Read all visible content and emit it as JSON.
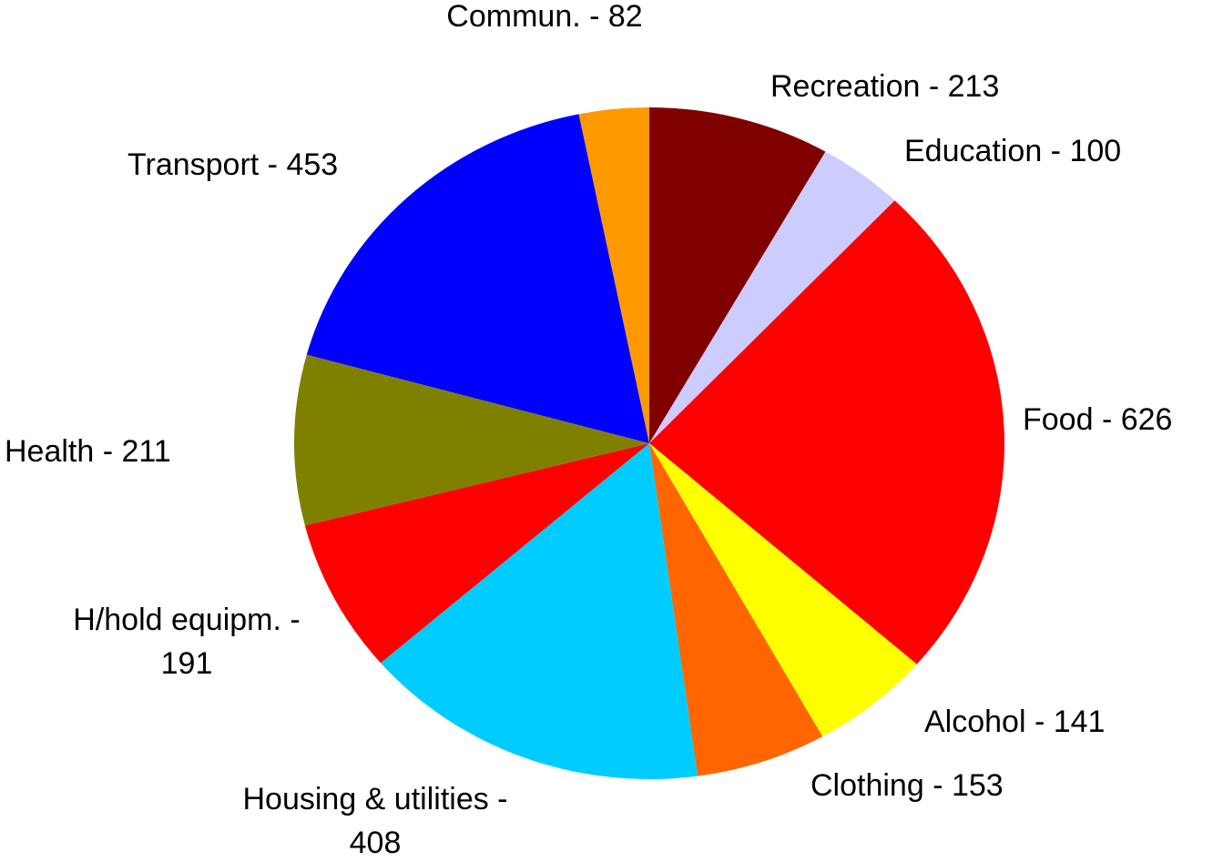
{
  "chart_data": {
    "type": "pie",
    "categories": [
      "Recreation - 213",
      "Education - 100",
      "Food - 626",
      "Alcohol - 141",
      "Clothing - 153",
      "Housing & utilities - 408",
      "H/hold equipm. - 191",
      "Health - 211",
      "Transport - 453",
      "Commun. - 82"
    ],
    "values": [
      213,
      100,
      626,
      141,
      153,
      408,
      191,
      211,
      453,
      82
    ],
    "colors": [
      "#800000",
      "#ccccff",
      "#ff0000",
      "#ffff00",
      "#ff6600",
      "#00ccff",
      "#ff0000",
      "#808000",
      "#0000ff",
      "#ff9900"
    ]
  }
}
